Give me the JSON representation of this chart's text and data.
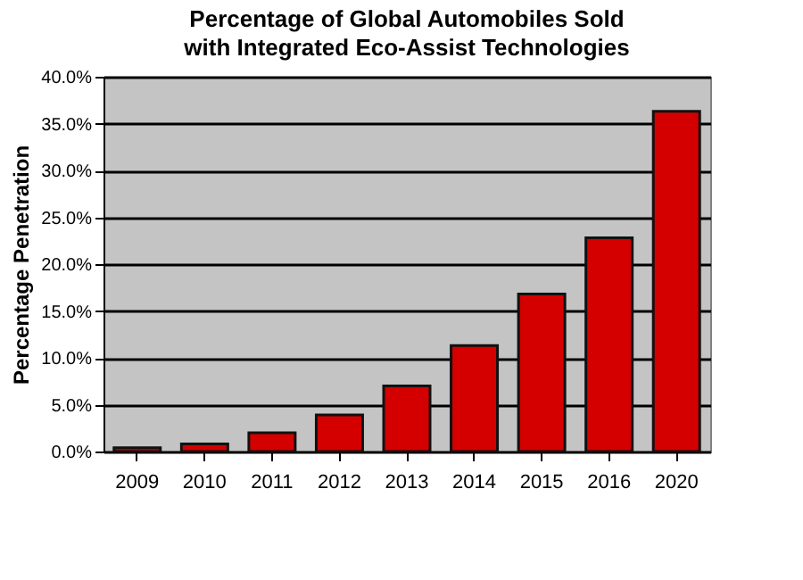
{
  "chart_data": {
    "type": "bar",
    "title": "Percentage of Global Automobiles Sold",
    "subtitle": "with Integrated Eco-Assist Technologies",
    "ylabel": "Percentage Penetration",
    "categories": [
      "2009",
      "2010",
      "2011",
      "2012",
      "2013",
      "2014",
      "2015",
      "2016",
      "2020"
    ],
    "values": [
      0.4,
      0.8,
      2.0,
      3.9,
      7.0,
      11.3,
      16.8,
      22.8,
      36.3
    ],
    "color": "#d40000",
    "ylim": [
      0,
      40
    ],
    "yticks": [
      {
        "value": 0,
        "label": "0.0%"
      },
      {
        "value": 5,
        "label": "5.0%"
      },
      {
        "value": 10,
        "label": "10.0%"
      },
      {
        "value": 15,
        "label": "15.0%"
      },
      {
        "value": 20,
        "label": "20.0%"
      },
      {
        "value": 25,
        "label": "25.0%"
      },
      {
        "value": 30,
        "label": "30.0%"
      },
      {
        "value": 35,
        "label": "35.0%"
      },
      {
        "value": 40,
        "label": "40.0%"
      }
    ],
    "grid": "y"
  }
}
